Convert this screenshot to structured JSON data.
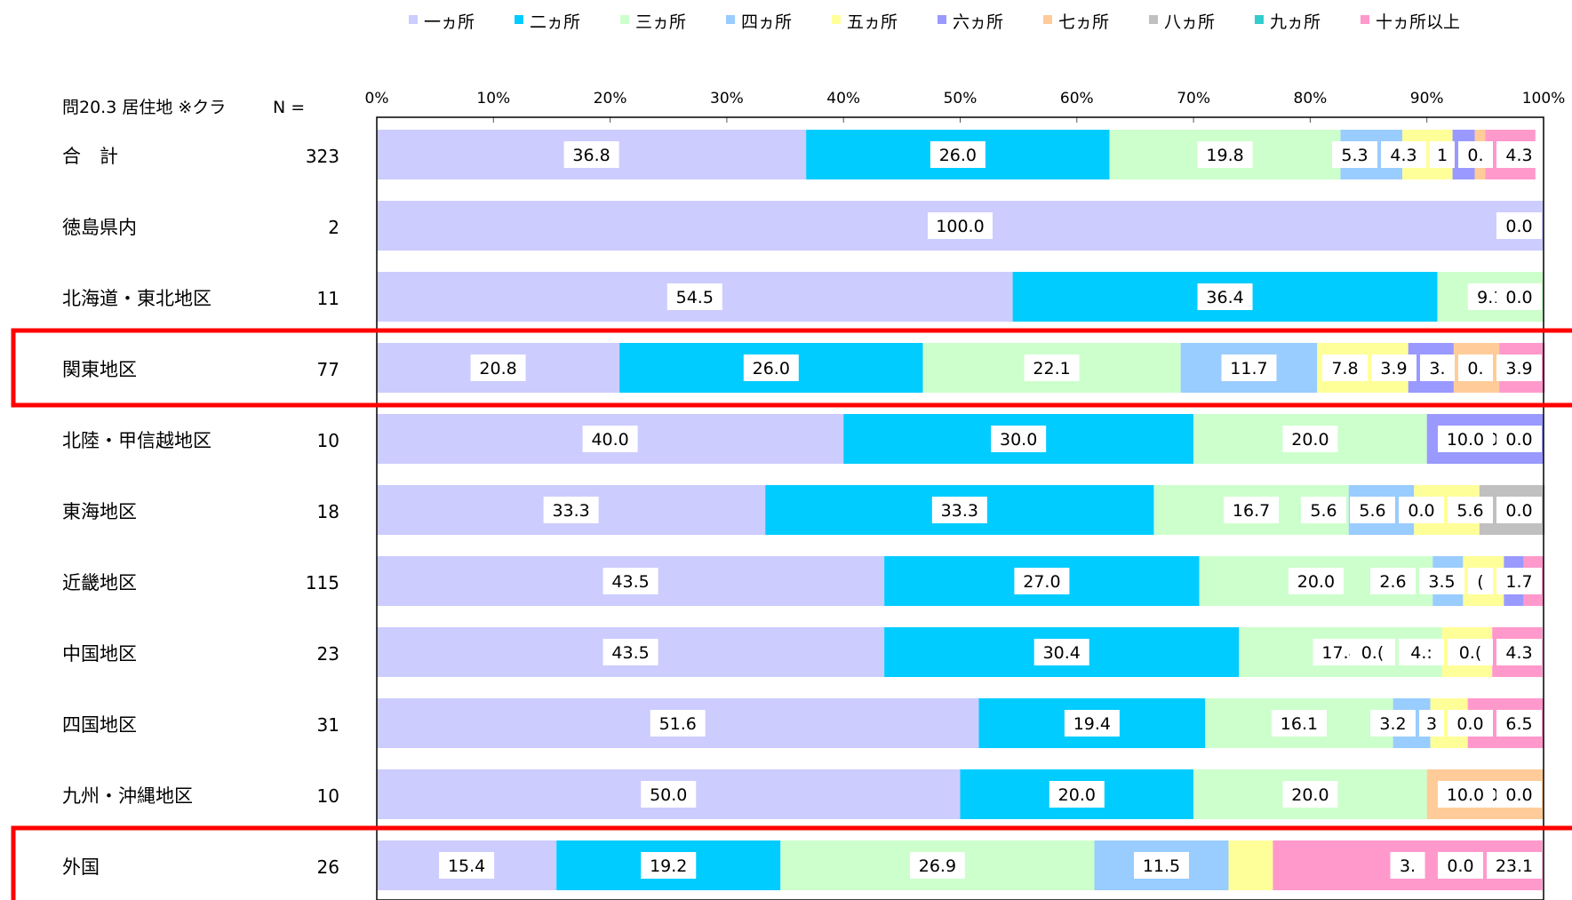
{
  "chart_data": {
    "type": "bar",
    "orientation": "horizontal",
    "stacked": "percent",
    "header_label": "問20.3 居住地 ※クラ",
    "n_header": "N =",
    "xlim": [
      0,
      100
    ],
    "x_ticks": [
      "0%",
      "10%",
      "20%",
      "30%",
      "40%",
      "50%",
      "60%",
      "70%",
      "80%",
      "90%",
      "100%"
    ],
    "legend_position": "top",
    "categories": [
      "合　計",
      "徳島県内",
      "北海道・東北地区",
      "関東地区",
      "北陸・甲信越地区",
      "東海地区",
      "近畿地区",
      "中国地区",
      "四国地区",
      "九州・沖縄地区",
      "外国"
    ],
    "n_values": [
      "323",
      "2",
      "11",
      "77",
      "10",
      "18",
      "115",
      "23",
      "31",
      "10",
      "26"
    ],
    "highlighted": [
      "関東地区",
      "外国"
    ],
    "highlight_color": "#ff0000",
    "series": [
      {
        "name": "一ヵ所",
        "color": "#ccccff",
        "values": [
          36.8,
          100.0,
          54.5,
          20.8,
          40.0,
          33.3,
          43.5,
          43.5,
          51.6,
          50.0,
          15.4
        ]
      },
      {
        "name": "二ヵ所",
        "color": "#00ccff",
        "values": [
          26.0,
          0.0,
          36.4,
          26.0,
          30.0,
          33.3,
          27.0,
          30.4,
          19.4,
          20.0,
          19.2
        ]
      },
      {
        "name": "三ヵ所",
        "color": "#ccffcc",
        "values": [
          19.8,
          0.0,
          9.1,
          22.1,
          20.0,
          16.7,
          20.0,
          17.4,
          16.1,
          20.0,
          26.9
        ]
      },
      {
        "name": "四ヵ所",
        "color": "#99ccff",
        "values": [
          5.3,
          0.0,
          0.0,
          11.7,
          0.0,
          5.6,
          2.6,
          0.0,
          3.2,
          0.0,
          11.5
        ]
      },
      {
        "name": "五ヵ所",
        "color": "#ffff99",
        "values": [
          4.3,
          0.0,
          0.0,
          7.8,
          0.0,
          5.6,
          3.5,
          4.3,
          3.2,
          0.0,
          3.8
        ]
      },
      {
        "name": "六ヵ所",
        "color": "#9999ff",
        "values": [
          1.9,
          0.0,
          0.0,
          3.9,
          10.0,
          0.0,
          1.7,
          0.0,
          0.0,
          0.0,
          0.0
        ]
      },
      {
        "name": "七ヵ所",
        "color": "#ffcc99",
        "values": [
          0.9,
          0.0,
          0.0,
          3.9,
          0.0,
          0.0,
          0.0,
          0.0,
          0.0,
          10.0,
          0.0
        ]
      },
      {
        "name": "八ヵ所",
        "color": "#c0c0c0",
        "values": [
          0.0,
          0.0,
          0.0,
          0.0,
          0.0,
          5.6,
          0.0,
          0.0,
          0.0,
          0.0,
          0.0
        ]
      },
      {
        "name": "九ヵ所",
        "color": "#33cccc",
        "values": [
          0.0,
          0.0,
          0.0,
          0.0,
          0.0,
          0.0,
          0.0,
          0.0,
          0.0,
          0.0,
          0.0
        ]
      },
      {
        "name": "十ヵ所以上",
        "color": "#ff99cc",
        "values": [
          4.3,
          0.0,
          0.0,
          3.9,
          0.0,
          0.0,
          1.7,
          4.3,
          6.5,
          0.0,
          23.1
        ]
      }
    ],
    "data_labels": [
      [
        "36.8",
        "26.0",
        "19.8",
        "5.3",
        "4.3",
        "1",
        "0.",
        "4.3"
      ],
      [
        "100.0",
        "0.0"
      ],
      [
        "54.5",
        "36.4",
        "9.1",
        "0.0"
      ],
      [
        "20.8",
        "26.0",
        "22.1",
        "11.7",
        "7.8",
        "3.9",
        "3.",
        "0.",
        "3.9"
      ],
      [
        "40.0",
        "30.0",
        "20.0",
        "0.0",
        "10.0",
        "0.0"
      ],
      [
        "33.3",
        "33.3",
        "16.7",
        "5.6",
        "5.6",
        "0.0",
        "5.6",
        "0.0"
      ],
      [
        "43.5",
        "27.0",
        "20.0",
        "2.6",
        "3.5",
        "(",
        "1.7"
      ],
      [
        "43.5",
        "30.4",
        "17.4",
        "0.(",
        "4.:",
        "0.(",
        "4.3"
      ],
      [
        "51.6",
        "19.4",
        "16.1",
        "3.2",
        "3",
        "0.0",
        "6.5"
      ],
      [
        "50.0",
        "20.0",
        "20.0",
        "0.0",
        "10.0",
        "0.0"
      ],
      [
        "15.4",
        "19.2",
        "26.9",
        "11.5",
        "3.",
        "0.0",
        "23.1"
      ]
    ]
  }
}
